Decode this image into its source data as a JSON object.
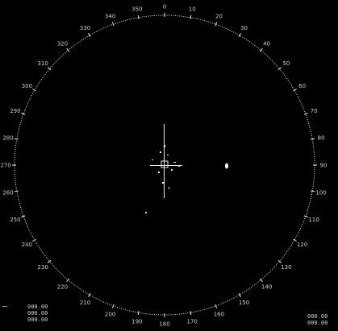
{
  "display": {
    "background": "#000000",
    "ring_color": "#e8e8e8",
    "target_color": "#ffffff"
  },
  "bearing_labels": [
    "0",
    "10",
    "20",
    "30",
    "40",
    "50",
    "60",
    "70",
    "80",
    "90",
    "100",
    "110",
    "120",
    "130",
    "140",
    "150",
    "160",
    "170",
    "180",
    "190",
    "200",
    "210",
    "220",
    "230",
    "240",
    "250",
    "260",
    "270",
    "280",
    "290",
    "300",
    "310",
    "320",
    "330",
    "340",
    "350"
  ],
  "readouts": {
    "left": [
      "000.00",
      "000.00",
      "000.00"
    ],
    "right": [
      "000.00",
      "000.00"
    ]
  }
}
